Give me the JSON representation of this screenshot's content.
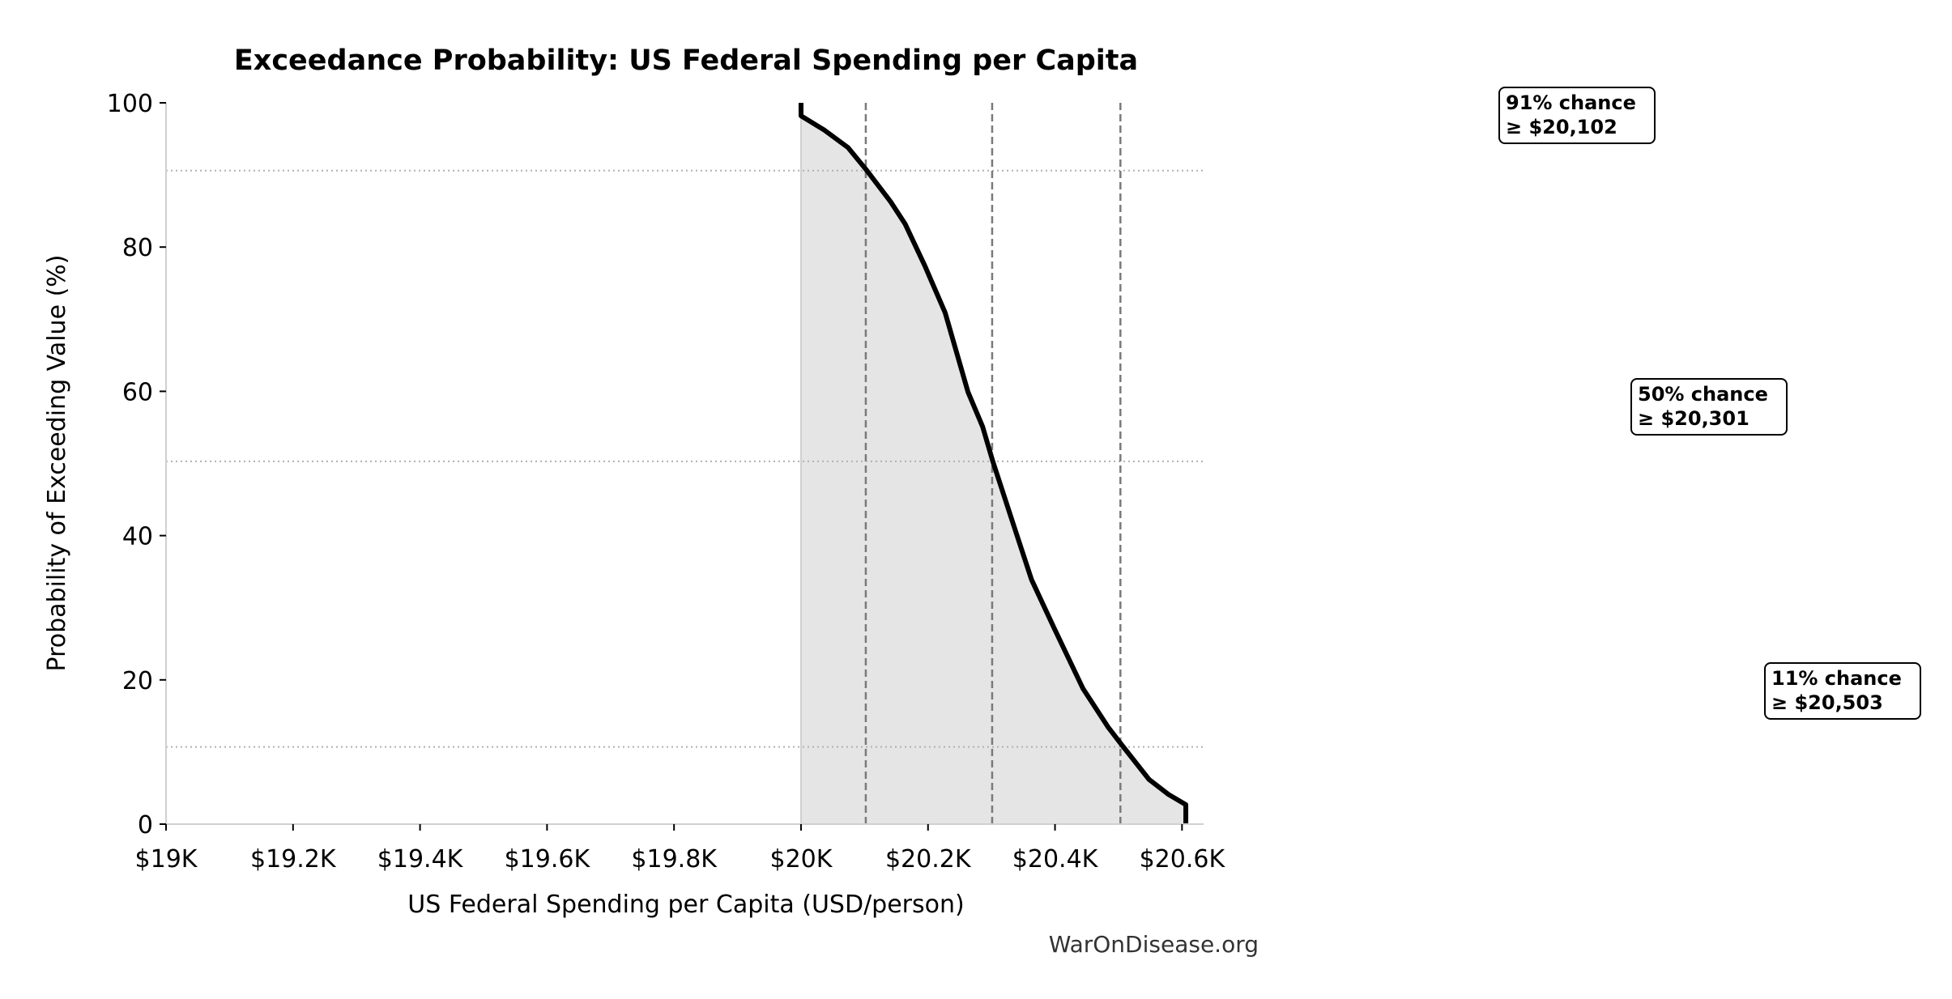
{
  "chart_data": {
    "type": "area",
    "title": "Exceedance Probability: US Federal Spending per Capita",
    "xlabel": "US Federal Spending per Capita (USD/person)",
    "ylabel": "Probability of Exceeding Value (%)",
    "xlim": [
      19000,
      20634
    ],
    "ylim": [
      0,
      100
    ],
    "xticks": [
      19000,
      19200,
      19400,
      19600,
      19800,
      20000,
      20200,
      20400,
      20600
    ],
    "xtick_labels": [
      "$19K",
      "$19.2K",
      "$19.4K",
      "$19.6K",
      "$19.8K",
      "$20K",
      "$20.2K",
      "$20.4K",
      "$20.6K"
    ],
    "yticks": [
      0,
      20,
      40,
      60,
      80,
      100
    ],
    "ytick_labels": [
      "0",
      "20",
      "40",
      "60",
      "80",
      "100"
    ],
    "grid": false,
    "series": [
      {
        "x": [
          20000,
          20000,
          20037,
          20074,
          20102,
          20141,
          20164,
          20195,
          20227,
          20263,
          20286,
          20302,
          20335,
          20363,
          20399,
          20444,
          20484,
          20505,
          20548,
          20579,
          20606,
          20606
        ],
        "y": [
          100,
          98.2,
          96.2,
          93.8,
          90.8,
          86.3,
          83.2,
          77.4,
          70.9,
          59.9,
          55.1,
          50.3,
          41.4,
          33.9,
          27.1,
          18.8,
          13.4,
          11.0,
          6.2,
          4.1,
          2.7,
          0
        ],
        "color": "#000000",
        "fill": "#e5e5e5"
      }
    ],
    "reference_lines": [
      {
        "x": 20102,
        "y": 90.6
      },
      {
        "x": 20301,
        "y": 50.3
      },
      {
        "x": 20503,
        "y": 10.7
      }
    ],
    "annotations": [
      {
        "line1": "91% chance",
        "line2": "≥ $20,102"
      },
      {
        "line1": "50% chance",
        "line2": "≥ $20,301"
      },
      {
        "line1": "11% chance",
        "line2": "≥ $20,503"
      }
    ],
    "watermark": "WarOnDisease.org"
  }
}
